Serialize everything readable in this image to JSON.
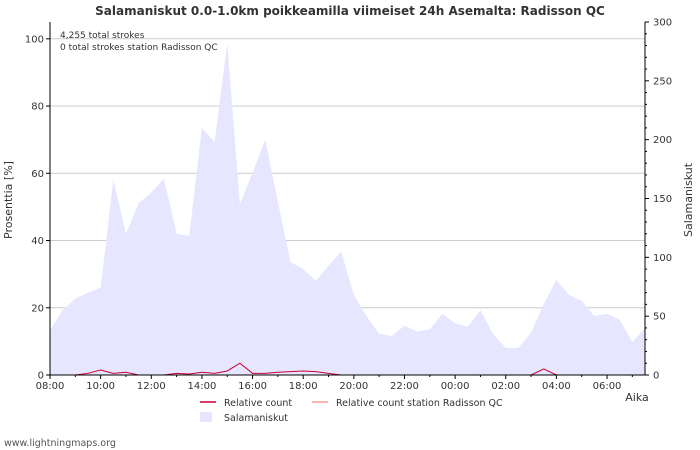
{
  "chart_data": {
    "type": "area",
    "title": "Salamaniskut 0.0-1.0km poikkeamilla viimeiset 24h Asemalta: Radisson QC",
    "xlabel": "Aika",
    "ylabel_left": "Prosenttia   [%]",
    "ylabel_right": "Salamaniskut",
    "ylim_left": [
      0,
      105
    ],
    "ylim_right": [
      0,
      300
    ],
    "yticks_left": [
      0,
      20,
      40,
      60,
      80,
      100
    ],
    "yticks_right": [
      0,
      50,
      100,
      150,
      200,
      250,
      300
    ],
    "x_range_hours": [
      0,
      23.5
    ],
    "x_tick_labels": [
      "08:00",
      "10:00",
      "12:00",
      "14:00",
      "16:00",
      "18:00",
      "20:00",
      "22:00",
      "00:00",
      "02:00",
      "04:00",
      "06:00"
    ],
    "annotations": [
      "4,255 total strokes",
      "0 total strokes station Radisson QC"
    ],
    "series": [
      {
        "name": "Salamaniskut",
        "axis": "right",
        "style": "area",
        "color": "#e6e6ff",
        "x_hours": [
          0,
          0.5,
          1,
          1.5,
          2,
          2.5,
          3,
          3.5,
          4,
          4.5,
          5,
          5.5,
          6,
          6.5,
          7,
          7.5,
          8,
          8.5,
          9,
          9.5,
          10,
          10.5,
          11,
          11.5,
          12,
          12.5,
          13,
          13.5,
          14,
          14.5,
          15,
          15.5,
          16,
          16.5,
          17,
          17.5,
          18,
          18.5,
          19,
          19.5,
          20,
          20.5,
          21,
          21.5,
          22,
          22.5,
          23,
          23.5
        ],
        "values": [
          38,
          55,
          65,
          70,
          74,
          166,
          120,
          146,
          155,
          167,
          120,
          118,
          210,
          198,
          282,
          145,
          172,
          200,
          147,
          96,
          90,
          80,
          93,
          105,
          68,
          50,
          35,
          33,
          42,
          37,
          39,
          52,
          44,
          41,
          55,
          35,
          23,
          23,
          36,
          60,
          81,
          68,
          63,
          50,
          52,
          47,
          28,
          40
        ]
      },
      {
        "name": "Relative count",
        "axis": "left",
        "style": "line",
        "color": "#cc0033",
        "x_hours": [
          0,
          0.5,
          1,
          1.5,
          2,
          2.5,
          3,
          3.5,
          4,
          4.5,
          5,
          5.5,
          6,
          6.5,
          7,
          7.5,
          8,
          8.5,
          9,
          9.5,
          10,
          10.5,
          11,
          11.5,
          12,
          12.5,
          13,
          13.5,
          14,
          14.5,
          15,
          15.5,
          16,
          16.5,
          17,
          17.5,
          18,
          18.5,
          19,
          19.5,
          20,
          20.5,
          21,
          21.5,
          22,
          22.5,
          23,
          23.5
        ],
        "values": [
          0,
          0,
          0,
          0.5,
          1.5,
          0.5,
          0.8,
          0,
          0,
          0,
          0.5,
          0.3,
          0.8,
          0.5,
          1.2,
          3.5,
          0.5,
          0.5,
          0.8,
          1,
          1.2,
          1,
          0.5,
          0,
          0,
          0,
          0,
          0,
          0,
          0,
          0,
          0,
          0,
          0,
          0,
          0,
          0,
          0,
          0,
          1.8,
          0,
          0,
          0,
          0,
          0,
          0,
          0,
          0
        ]
      },
      {
        "name": "Relative count station Radisson QC",
        "axis": "left",
        "style": "line",
        "color": "#ff9999",
        "x_hours": [
          0,
          23.5
        ],
        "values": [
          0,
          0
        ]
      }
    ],
    "legend": {
      "placement": "bottom",
      "entries": [
        "Relative count",
        "Relative count station Radisson QC",
        "Salamaniskut"
      ]
    }
  },
  "footer": {
    "source": "www.lightningmaps.org"
  }
}
